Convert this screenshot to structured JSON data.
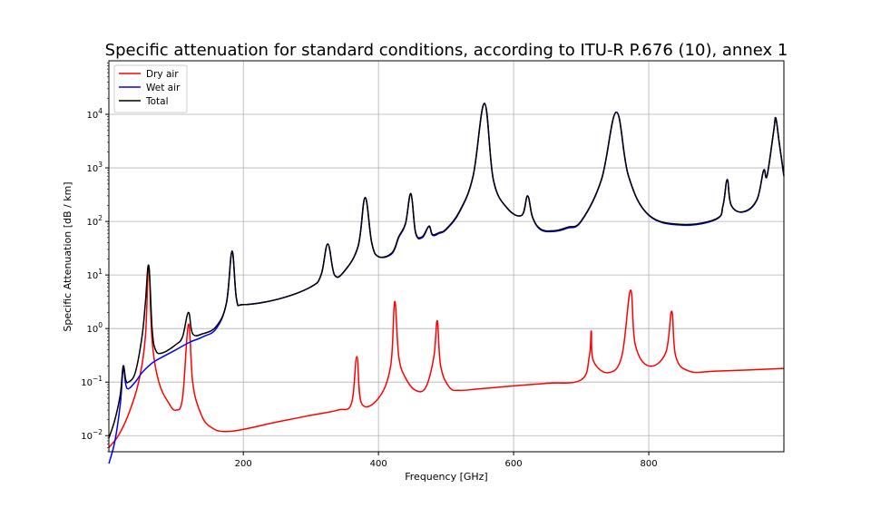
{
  "chart_data": {
    "type": "line",
    "title": "Specific attenuation for standard conditions, according to ITU-R P.676 (10), annex 1",
    "xlabel": "Frequency [GHz]",
    "ylabel": "Specific Attenuation [dB / km]",
    "xlim": [
      1,
      1000
    ],
    "ylim": [
      0.005,
      100000
    ],
    "yscale": "log",
    "xticks": [
      200,
      400,
      600,
      800
    ],
    "xtick_labels": [
      "200",
      "400",
      "600",
      "800"
    ],
    "yticks": [
      0.01,
      0.1,
      1,
      10,
      100,
      1000,
      10000
    ],
    "ytick_labels": [
      "10^-2",
      "10^-1",
      "10^0",
      "10^1",
      "10^2",
      "10^3",
      "10^4"
    ],
    "grid": true,
    "legend": {
      "position": "top-left",
      "entries": [
        "Dry air",
        "Wet air",
        "Total"
      ]
    },
    "series": [
      {
        "name": "Dry air",
        "color": "#ff0000",
        "x": [
          1,
          15,
          30,
          45,
          55,
          60,
          65,
          75,
          90,
          100,
          110,
          118.75,
          125,
          135,
          150,
          180,
          250,
          300,
          340,
          360,
          368,
          375,
          400,
          418,
          424,
          430,
          440,
          455,
          470,
          482,
          487,
          492,
          505,
          520,
          550,
          600,
          650,
          700,
          712,
          715,
          718,
          740,
          760,
          773,
          780,
          800,
          825,
          834,
          840,
          860,
          900,
          1000
        ],
        "y": [
          0.006,
          0.01,
          0.025,
          0.1,
          0.7,
          15,
          0.6,
          0.1,
          0.04,
          0.03,
          0.05,
          1.2,
          0.1,
          0.03,
          0.015,
          0.012,
          0.018,
          0.024,
          0.03,
          0.04,
          0.3,
          0.04,
          0.05,
          0.2,
          3.2,
          0.3,
          0.12,
          0.07,
          0.08,
          0.3,
          1.4,
          0.2,
          0.08,
          0.07,
          0.075,
          0.085,
          0.095,
          0.11,
          0.3,
          0.9,
          0.25,
          0.15,
          0.3,
          5.2,
          0.5,
          0.2,
          0.35,
          2.1,
          0.3,
          0.16,
          0.16,
          0.18
        ]
      },
      {
        "name": "Wet air",
        "color": "#0000ff",
        "x": [
          1,
          10,
          18,
          22.2,
          26,
          30,
          40,
          50,
          60,
          70,
          100,
          120,
          140,
          160,
          175,
          183.3,
          190,
          200,
          250,
          300,
          315,
          325,
          335,
          350,
          370,
          380.2,
          390,
          400,
          420,
          430,
          440,
          448,
          455,
          465,
          474.7,
          480,
          490,
          500,
          520,
          540,
          556.9,
          570,
          590,
          612,
          620.7,
          628,
          640,
          660,
          680,
          700,
          730,
          752,
          770,
          800,
          850,
          900,
          910,
          916.2,
          922,
          940,
          960,
          970,
          975,
          985,
          988,
          993,
          1000
        ],
        "y": [
          0.003,
          0.008,
          0.04,
          0.18,
          0.09,
          0.075,
          0.1,
          0.15,
          0.2,
          0.25,
          0.4,
          0.55,
          0.7,
          1,
          3,
          27,
          3.5,
          2.8,
          3.5,
          6,
          10,
          38,
          10,
          12,
          35,
          280,
          40,
          22,
          25,
          50,
          90,
          330,
          60,
          50,
          80,
          55,
          60,
          70,
          150,
          700,
          16000,
          600,
          180,
          130,
          300,
          120,
          70,
          65,
          75,
          100,
          600,
          11000,
          700,
          130,
          85,
          110,
          200,
          600,
          200,
          150,
          250,
          900,
          700,
          5000,
          8500,
          3000,
          700
        ]
      },
      {
        "name": "Total",
        "color": "#000000",
        "x": [
          1,
          10,
          18,
          22.2,
          26,
          30,
          40,
          50,
          55,
          60,
          65,
          70,
          80,
          100,
          110,
          118.75,
          125,
          140,
          160,
          175,
          183.3,
          190,
          200,
          250,
          300,
          315,
          325,
          335,
          350,
          370,
          380.2,
          390,
          400,
          420,
          430,
          440,
          448,
          455,
          465,
          474.7,
          480,
          490,
          500,
          520,
          540,
          556.9,
          570,
          590,
          612,
          620.7,
          628,
          640,
          660,
          680,
          700,
          730,
          752,
          770,
          800,
          850,
          900,
          910,
          916.2,
          922,
          940,
          960,
          970,
          975,
          985,
          988,
          993,
          1000
        ],
        "y": [
          0.009,
          0.02,
          0.06,
          0.2,
          0.11,
          0.1,
          0.15,
          0.7,
          3,
          15,
          1,
          0.4,
          0.35,
          0.5,
          0.7,
          2,
          0.8,
          0.8,
          1.1,
          3,
          28,
          3.5,
          2.8,
          3.5,
          6,
          10,
          38,
          10,
          12,
          35,
          280,
          40,
          22,
          26,
          52,
          92,
          330,
          62,
          52,
          82,
          57,
          62,
          72,
          155,
          700,
          16000,
          600,
          180,
          130,
          300,
          120,
          72,
          67,
          78,
          102,
          610,
          11000,
          710,
          132,
          88,
          112,
          202,
          610,
          202,
          152,
          255,
          900,
          710,
          5000,
          8500,
          3000,
          720
        ]
      }
    ]
  }
}
